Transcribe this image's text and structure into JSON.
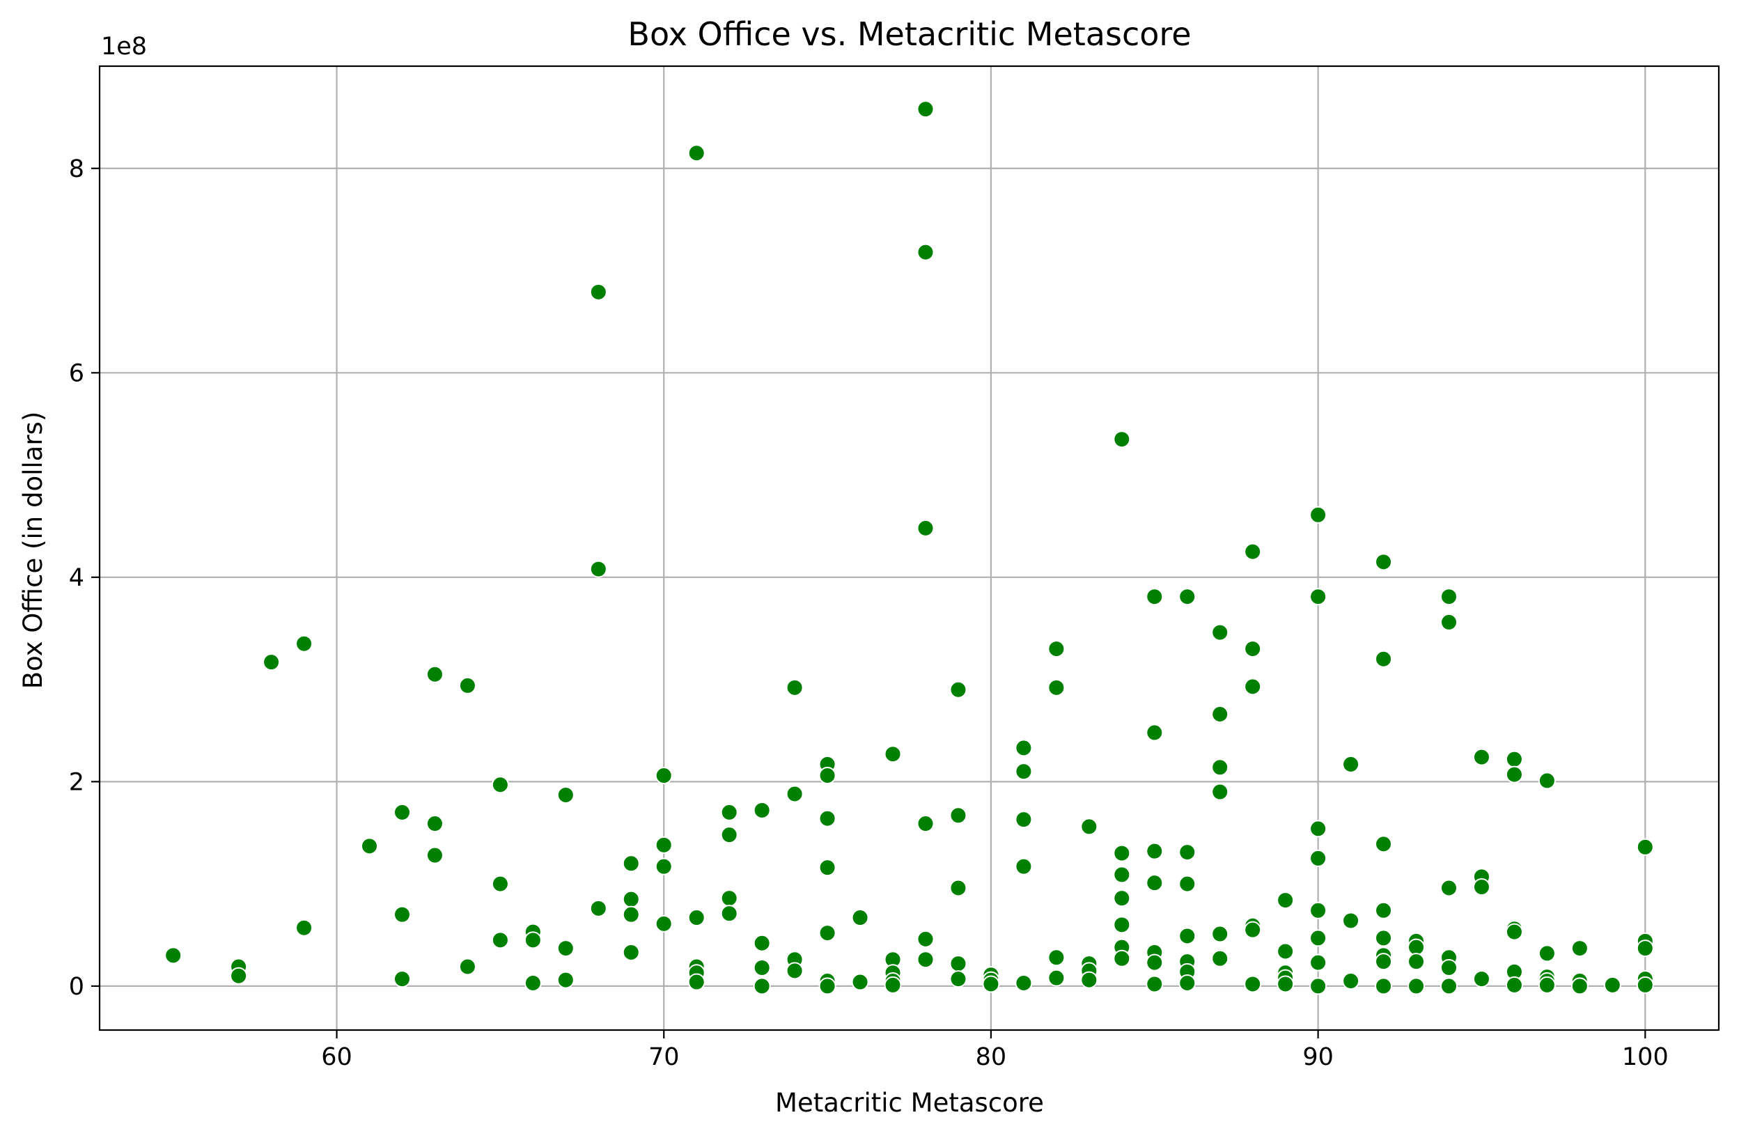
{
  "chart_data": {
    "type": "scatter",
    "title": "Box Office vs. Metacritic Metascore",
    "xlabel": "Metacritic Metascore",
    "ylabel": "Box Office (in dollars)",
    "y_offset_label": "1e8",
    "xlim": [
      52.75,
      102.25
    ],
    "ylim": [
      -43000000,
      900000000
    ],
    "x_ticks": [
      60,
      70,
      80,
      90,
      100
    ],
    "x_tick_labels": [
      "60",
      "70",
      "80",
      "90",
      "100"
    ],
    "y_ticks": [
      0,
      200000000,
      400000000,
      600000000,
      800000000
    ],
    "y_tick_labels": [
      "0",
      "2",
      "4",
      "6",
      "8"
    ],
    "grid": true,
    "legend": "none",
    "marker_color": "#008000",
    "marker_edge_color": "#ffffff",
    "points": [
      {
        "x": 55,
        "y": 30000000
      },
      {
        "x": 57,
        "y": 19000000
      },
      {
        "x": 57,
        "y": 10000000
      },
      {
        "x": 58,
        "y": 317000000
      },
      {
        "x": 59,
        "y": 335000000
      },
      {
        "x": 59,
        "y": 57000000
      },
      {
        "x": 61,
        "y": 137000000
      },
      {
        "x": 62,
        "y": 170000000
      },
      {
        "x": 62,
        "y": 70000000
      },
      {
        "x": 62,
        "y": 7000000
      },
      {
        "x": 63,
        "y": 305000000
      },
      {
        "x": 63,
        "y": 159000000
      },
      {
        "x": 63,
        "y": 128000000
      },
      {
        "x": 64,
        "y": 294000000
      },
      {
        "x": 64,
        "y": 19000000
      },
      {
        "x": 65,
        "y": 197000000
      },
      {
        "x": 65,
        "y": 100000000
      },
      {
        "x": 65,
        "y": 45000000
      },
      {
        "x": 66,
        "y": 53000000
      },
      {
        "x": 66,
        "y": 45000000
      },
      {
        "x": 66,
        "y": 3000000
      },
      {
        "x": 67,
        "y": 187000000
      },
      {
        "x": 67,
        "y": 37000000
      },
      {
        "x": 67,
        "y": 6000000
      },
      {
        "x": 68,
        "y": 679000000
      },
      {
        "x": 68,
        "y": 408000000
      },
      {
        "x": 68,
        "y": 76000000
      },
      {
        "x": 69,
        "y": 120000000
      },
      {
        "x": 69,
        "y": 85000000
      },
      {
        "x": 69,
        "y": 70000000
      },
      {
        "x": 69,
        "y": 33000000
      },
      {
        "x": 70,
        "y": 206000000
      },
      {
        "x": 70,
        "y": 138000000
      },
      {
        "x": 70,
        "y": 117000000
      },
      {
        "x": 70,
        "y": 61000000
      },
      {
        "x": 71,
        "y": 815000000
      },
      {
        "x": 71,
        "y": 67000000
      },
      {
        "x": 71,
        "y": 19000000
      },
      {
        "x": 71,
        "y": 13000000
      },
      {
        "x": 71,
        "y": 4000000
      },
      {
        "x": 72,
        "y": 170000000
      },
      {
        "x": 72,
        "y": 148000000
      },
      {
        "x": 72,
        "y": 86000000
      },
      {
        "x": 72,
        "y": 71000000
      },
      {
        "x": 73,
        "y": 172000000
      },
      {
        "x": 73,
        "y": 42000000
      },
      {
        "x": 73,
        "y": 18000000
      },
      {
        "x": 73,
        "y": 0
      },
      {
        "x": 74,
        "y": 292000000
      },
      {
        "x": 74,
        "y": 188000000
      },
      {
        "x": 74,
        "y": 26000000
      },
      {
        "x": 74,
        "y": 15000000
      },
      {
        "x": 75,
        "y": 217000000
      },
      {
        "x": 75,
        "y": 206000000
      },
      {
        "x": 75,
        "y": 164000000
      },
      {
        "x": 75,
        "y": 116000000
      },
      {
        "x": 75,
        "y": 52000000
      },
      {
        "x": 75,
        "y": 5000000
      },
      {
        "x": 75,
        "y": 0
      },
      {
        "x": 76,
        "y": 67000000
      },
      {
        "x": 76,
        "y": 4000000
      },
      {
        "x": 77,
        "y": 227000000
      },
      {
        "x": 77,
        "y": 26000000
      },
      {
        "x": 77,
        "y": 13000000
      },
      {
        "x": 77,
        "y": 5000000
      },
      {
        "x": 77,
        "y": 1000000
      },
      {
        "x": 78,
        "y": 858000000
      },
      {
        "x": 78,
        "y": 718000000
      },
      {
        "x": 78,
        "y": 448000000
      },
      {
        "x": 78,
        "y": 159000000
      },
      {
        "x": 78,
        "y": 46000000
      },
      {
        "x": 78,
        "y": 26000000
      },
      {
        "x": 79,
        "y": 290000000
      },
      {
        "x": 79,
        "y": 167000000
      },
      {
        "x": 79,
        "y": 96000000
      },
      {
        "x": 79,
        "y": 22000000
      },
      {
        "x": 79,
        "y": 7000000
      },
      {
        "x": 80,
        "y": 11000000
      },
      {
        "x": 80,
        "y": 6000000
      },
      {
        "x": 80,
        "y": 2000000
      },
      {
        "x": 81,
        "y": 233000000
      },
      {
        "x": 81,
        "y": 210000000
      },
      {
        "x": 81,
        "y": 163000000
      },
      {
        "x": 81,
        "y": 117000000
      },
      {
        "x": 81,
        "y": 3000000
      },
      {
        "x": 82,
        "y": 330000000
      },
      {
        "x": 82,
        "y": 292000000
      },
      {
        "x": 82,
        "y": 28000000
      },
      {
        "x": 82,
        "y": 8000000
      },
      {
        "x": 83,
        "y": 156000000
      },
      {
        "x": 83,
        "y": 22000000
      },
      {
        "x": 83,
        "y": 15000000
      },
      {
        "x": 83,
        "y": 6000000
      },
      {
        "x": 84,
        "y": 535000000
      },
      {
        "x": 84,
        "y": 130000000
      },
      {
        "x": 84,
        "y": 109000000
      },
      {
        "x": 84,
        "y": 86000000
      },
      {
        "x": 84,
        "y": 60000000
      },
      {
        "x": 84,
        "y": 38000000
      },
      {
        "x": 84,
        "y": 27000000
      },
      {
        "x": 85,
        "y": 381000000
      },
      {
        "x": 85,
        "y": 248000000
      },
      {
        "x": 85,
        "y": 132000000
      },
      {
        "x": 85,
        "y": 101000000
      },
      {
        "x": 85,
        "y": 33000000
      },
      {
        "x": 85,
        "y": 23000000
      },
      {
        "x": 85,
        "y": 2000000
      },
      {
        "x": 86,
        "y": 381000000
      },
      {
        "x": 86,
        "y": 131000000
      },
      {
        "x": 86,
        "y": 100000000
      },
      {
        "x": 86,
        "y": 49000000
      },
      {
        "x": 86,
        "y": 24000000
      },
      {
        "x": 86,
        "y": 14000000
      },
      {
        "x": 86,
        "y": 3000000
      },
      {
        "x": 87,
        "y": 346000000
      },
      {
        "x": 87,
        "y": 266000000
      },
      {
        "x": 87,
        "y": 214000000
      },
      {
        "x": 87,
        "y": 190000000
      },
      {
        "x": 87,
        "y": 51000000
      },
      {
        "x": 87,
        "y": 27000000
      },
      {
        "x": 88,
        "y": 425000000
      },
      {
        "x": 88,
        "y": 330000000
      },
      {
        "x": 88,
        "y": 293000000
      },
      {
        "x": 88,
        "y": 59000000
      },
      {
        "x": 88,
        "y": 55000000
      },
      {
        "x": 88,
        "y": 2000000
      },
      {
        "x": 89,
        "y": 84000000
      },
      {
        "x": 89,
        "y": 34000000
      },
      {
        "x": 89,
        "y": 13000000
      },
      {
        "x": 89,
        "y": 8000000
      },
      {
        "x": 89,
        "y": 2000000
      },
      {
        "x": 90,
        "y": 461000000
      },
      {
        "x": 90,
        "y": 381000000
      },
      {
        "x": 90,
        "y": 154000000
      },
      {
        "x": 90,
        "y": 125000000
      },
      {
        "x": 90,
        "y": 74000000
      },
      {
        "x": 90,
        "y": 47000000
      },
      {
        "x": 90,
        "y": 23000000
      },
      {
        "x": 90,
        "y": 0
      },
      {
        "x": 91,
        "y": 217000000
      },
      {
        "x": 91,
        "y": 64000000
      },
      {
        "x": 91,
        "y": 5000000
      },
      {
        "x": 92,
        "y": 415000000
      },
      {
        "x": 92,
        "y": 320000000
      },
      {
        "x": 92,
        "y": 139000000
      },
      {
        "x": 92,
        "y": 74000000
      },
      {
        "x": 92,
        "y": 47000000
      },
      {
        "x": 92,
        "y": 30000000
      },
      {
        "x": 92,
        "y": 24000000
      },
      {
        "x": 92,
        "y": 0
      },
      {
        "x": 93,
        "y": 44000000
      },
      {
        "x": 93,
        "y": 38000000
      },
      {
        "x": 93,
        "y": 24000000
      },
      {
        "x": 93,
        "y": 0
      },
      {
        "x": 94,
        "y": 381000000
      },
      {
        "x": 94,
        "y": 356000000
      },
      {
        "x": 94,
        "y": 96000000
      },
      {
        "x": 94,
        "y": 28000000
      },
      {
        "x": 94,
        "y": 18000000
      },
      {
        "x": 94,
        "y": 0
      },
      {
        "x": 95,
        "y": 224000000
      },
      {
        "x": 95,
        "y": 107000000
      },
      {
        "x": 95,
        "y": 97000000
      },
      {
        "x": 95,
        "y": 7000000
      },
      {
        "x": 96,
        "y": 222000000
      },
      {
        "x": 96,
        "y": 207000000
      },
      {
        "x": 96,
        "y": 56000000
      },
      {
        "x": 96,
        "y": 53000000
      },
      {
        "x": 96,
        "y": 14000000
      },
      {
        "x": 96,
        "y": 1000000
      },
      {
        "x": 97,
        "y": 201000000
      },
      {
        "x": 97,
        "y": 32000000
      },
      {
        "x": 97,
        "y": 9000000
      },
      {
        "x": 97,
        "y": 5000000
      },
      {
        "x": 97,
        "y": 1000000
      },
      {
        "x": 98,
        "y": 37000000
      },
      {
        "x": 98,
        "y": 5000000
      },
      {
        "x": 98,
        "y": 0
      },
      {
        "x": 99,
        "y": 2000000
      },
      {
        "x": 99,
        "y": 1000000
      },
      {
        "x": 100,
        "y": 136000000
      },
      {
        "x": 100,
        "y": 44000000
      },
      {
        "x": 100,
        "y": 37000000
      },
      {
        "x": 100,
        "y": 7000000
      },
      {
        "x": 100,
        "y": 1000000
      }
    ]
  }
}
